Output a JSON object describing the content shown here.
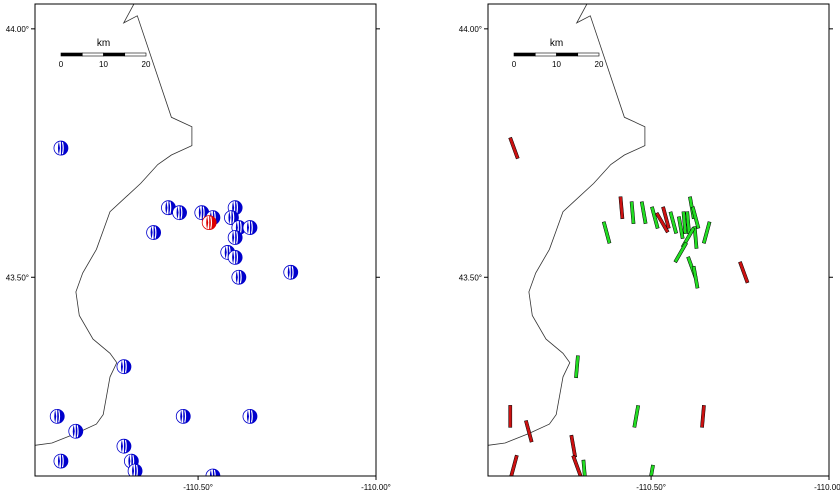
{
  "axes": {
    "lat_labels": [
      "44.00°",
      "43.50°"
    ],
    "lon_labels": [
      "-110.50°",
      "-110.00°"
    ]
  },
  "scalebar": {
    "unit": "km",
    "ticks": [
      "0",
      "10",
      "20"
    ]
  },
  "colors": {
    "beachball": "#0000cc",
    "highlight": "#dd0000",
    "segment_green": "#22dd22",
    "segment_red": "#cc1111"
  },
  "left_map": {
    "symbol": "focal-mechanism",
    "events": [
      {
        "lon": -110.87,
        "lat": 43.76,
        "color": "blue"
      },
      {
        "lon": -110.58,
        "lat": 43.64,
        "color": "blue"
      },
      {
        "lon": -110.55,
        "lat": 43.63,
        "color": "blue"
      },
      {
        "lon": -110.49,
        "lat": 43.63,
        "color": "blue"
      },
      {
        "lon": -110.46,
        "lat": 43.62,
        "color": "blue"
      },
      {
        "lon": -110.4,
        "lat": 43.64,
        "color": "blue"
      },
      {
        "lon": -110.41,
        "lat": 43.62,
        "color": "blue"
      },
      {
        "lon": -110.47,
        "lat": 43.61,
        "color": "red"
      },
      {
        "lon": -110.39,
        "lat": 43.6,
        "color": "blue"
      },
      {
        "lon": -110.36,
        "lat": 43.6,
        "color": "blue"
      },
      {
        "lon": -110.4,
        "lat": 43.58,
        "color": "blue"
      },
      {
        "lon": -110.42,
        "lat": 43.55,
        "color": "blue"
      },
      {
        "lon": -110.4,
        "lat": 43.54,
        "color": "blue"
      },
      {
        "lon": -110.62,
        "lat": 43.59,
        "color": "blue"
      },
      {
        "lon": -110.39,
        "lat": 43.5,
        "color": "blue"
      },
      {
        "lon": -110.25,
        "lat": 43.51,
        "color": "blue"
      },
      {
        "lon": -110.7,
        "lat": 43.32,
        "color": "blue"
      },
      {
        "lon": -110.88,
        "lat": 43.22,
        "color": "blue"
      },
      {
        "lon": -110.83,
        "lat": 43.19,
        "color": "blue"
      },
      {
        "lon": -110.54,
        "lat": 43.22,
        "color": "blue"
      },
      {
        "lon": -110.36,
        "lat": 43.22,
        "color": "blue"
      },
      {
        "lon": -110.7,
        "lat": 43.16,
        "color": "blue"
      },
      {
        "lon": -110.68,
        "lat": 43.13,
        "color": "blue"
      },
      {
        "lon": -110.67,
        "lat": 43.11,
        "color": "blue"
      },
      {
        "lon": -110.87,
        "lat": 43.13,
        "color": "blue"
      },
      {
        "lon": -110.46,
        "lat": 43.1,
        "color": "blue"
      }
    ]
  },
  "right_map": {
    "symbol": "oriented-segment",
    "segments": [
      {
        "lon": -110.87,
        "lat": 43.76,
        "az": 160,
        "color": "red"
      },
      {
        "lon": -110.58,
        "lat": 43.64,
        "az": 175,
        "color": "red"
      },
      {
        "lon": -110.55,
        "lat": 43.63,
        "az": 175,
        "color": "green"
      },
      {
        "lon": -110.52,
        "lat": 43.63,
        "az": 170,
        "color": "green"
      },
      {
        "lon": -110.49,
        "lat": 43.62,
        "az": 165,
        "color": "green"
      },
      {
        "lon": -110.47,
        "lat": 43.61,
        "az": 150,
        "color": "red"
      },
      {
        "lon": -110.46,
        "lat": 43.62,
        "az": 165,
        "color": "red"
      },
      {
        "lon": -110.44,
        "lat": 43.61,
        "az": 165,
        "color": "green"
      },
      {
        "lon": -110.42,
        "lat": 43.6,
        "az": 170,
        "color": "green"
      },
      {
        "lon": -110.41,
        "lat": 43.61,
        "az": 175,
        "color": "green"
      },
      {
        "lon": -110.4,
        "lat": 43.61,
        "az": 175,
        "color": "green"
      },
      {
        "lon": -110.39,
        "lat": 43.64,
        "az": 170,
        "color": "green"
      },
      {
        "lon": -110.38,
        "lat": 43.62,
        "az": 165,
        "color": "green"
      },
      {
        "lon": -110.38,
        "lat": 43.58,
        "az": 175,
        "color": "green"
      },
      {
        "lon": -110.35,
        "lat": 43.59,
        "az": 15,
        "color": "green"
      },
      {
        "lon": -110.4,
        "lat": 43.58,
        "az": 30,
        "color": "green"
      },
      {
        "lon": -110.42,
        "lat": 43.55,
        "az": 30,
        "color": "green"
      },
      {
        "lon": -110.39,
        "lat": 43.52,
        "az": 160,
        "color": "green"
      },
      {
        "lon": -110.38,
        "lat": 43.5,
        "az": 170,
        "color": "green"
      },
      {
        "lon": -110.62,
        "lat": 43.59,
        "az": 165,
        "color": "green"
      },
      {
        "lon": -110.25,
        "lat": 43.51,
        "az": 160,
        "color": "red"
      },
      {
        "lon": -110.7,
        "lat": 43.32,
        "az": 5,
        "color": "green"
      },
      {
        "lon": -110.88,
        "lat": 43.22,
        "az": 180,
        "color": "red"
      },
      {
        "lon": -110.83,
        "lat": 43.19,
        "az": 165,
        "color": "red"
      },
      {
        "lon": -110.54,
        "lat": 43.22,
        "az": 10,
        "color": "green"
      },
      {
        "lon": -110.36,
        "lat": 43.22,
        "az": 5,
        "color": "red"
      },
      {
        "lon": -110.71,
        "lat": 43.16,
        "az": 170,
        "color": "red"
      },
      {
        "lon": -110.7,
        "lat": 43.12,
        "az": 160,
        "color": "red"
      },
      {
        "lon": -110.87,
        "lat": 43.12,
        "az": 15,
        "color": "red"
      },
      {
        "lon": -110.68,
        "lat": 43.11,
        "az": 175,
        "color": "green"
      },
      {
        "lon": -110.5,
        "lat": 43.1,
        "az": 10,
        "color": "green"
      }
    ]
  }
}
